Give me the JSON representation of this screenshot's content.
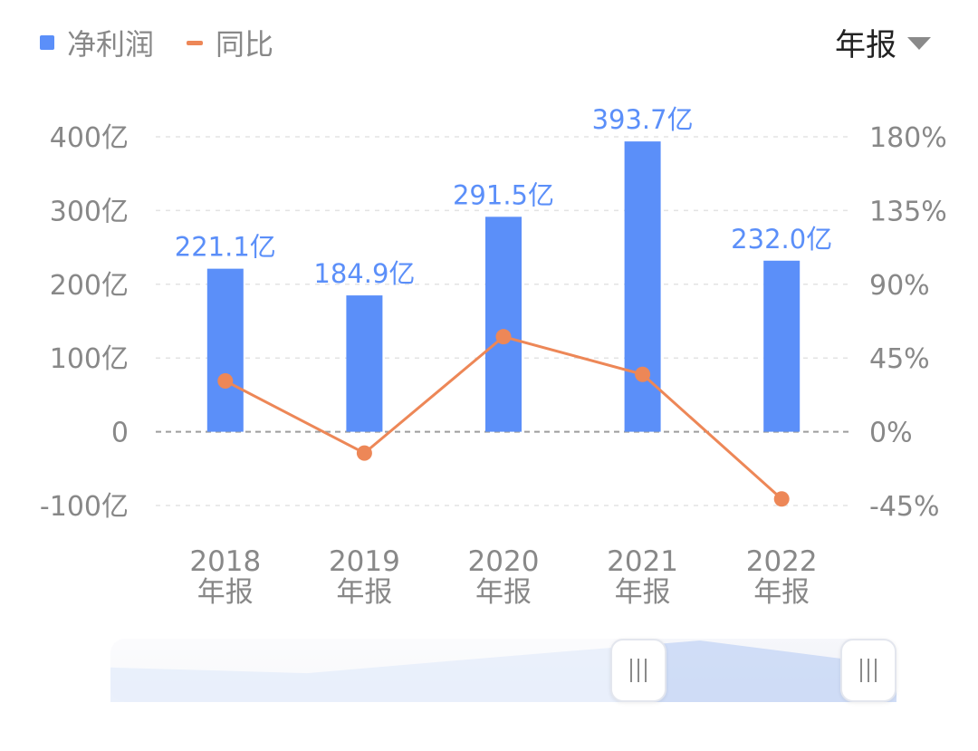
{
  "legend": {
    "profit_label": "净利润",
    "yoy_label": "同比"
  },
  "period_select": {
    "value": "年报"
  },
  "colors": {
    "bar": "#5b8ff9",
    "line": "#ed8757",
    "bar_label": "#5b8ff9",
    "axis_text": "#888888",
    "grid": "#e3e3e3",
    "zero_line": "#9e9e9e",
    "zoom_fill": "#c9d8f6"
  },
  "chart_data": {
    "type": "bar",
    "categories": [
      "2018\n年报",
      "2019\n年报",
      "2020\n年报",
      "2021\n年报",
      "2022\n年报"
    ],
    "series": [
      {
        "name": "净利润",
        "type": "bar",
        "axis": "left",
        "values": [
          221.1,
          184.9,
          291.5,
          393.7,
          232.0
        ],
        "labels": [
          "221.1亿",
          "184.9亿",
          "291.5亿",
          "393.7亿",
          "232.0亿"
        ]
      },
      {
        "name": "同比",
        "type": "line",
        "axis": "right",
        "values": [
          31,
          -13,
          58,
          35,
          -41
        ]
      }
    ],
    "y_left": {
      "ylim": [
        -100,
        400
      ],
      "ticks": [
        400,
        300,
        200,
        100,
        0,
        -100
      ],
      "tick_labels": [
        "400亿",
        "300亿",
        "200亿",
        "100亿",
        "0",
        "-100亿"
      ]
    },
    "y_right": {
      "ylim": [
        -45,
        180
      ],
      "ticks": [
        180,
        135,
        90,
        45,
        0,
        -45
      ],
      "tick_labels": [
        "180%",
        "135%",
        "90%",
        "45%",
        "0%",
        "-45%"
      ]
    },
    "grid": true,
    "legend_position": "top-left"
  },
  "zoom": {
    "range_start": 0.66,
    "range_end": 1.0
  }
}
